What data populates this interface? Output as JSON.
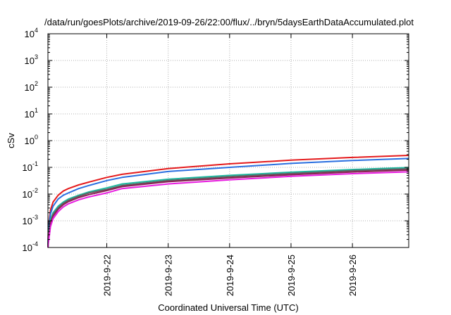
{
  "chart_data": {
    "type": "line",
    "title": "/data/run/goesPlots/archive/2019-09-26/22:00/flux/../bryn/5daysEarthDataAccumulated.plot",
    "xlabel": "Coordinated Universal Time (UTC)",
    "ylabel": "cSv",
    "y_scale": "log",
    "ylim": [
      0.0001,
      10000
    ],
    "xlim": [
      "2019-09-21 01:00",
      "2019-09-26 22:00"
    ],
    "y_ticks": [
      {
        "base": "10",
        "exp": "-4",
        "value": 0.0001
      },
      {
        "base": "10",
        "exp": "-3",
        "value": 0.001
      },
      {
        "base": "10",
        "exp": "-2",
        "value": 0.01
      },
      {
        "base": "10",
        "exp": "-1",
        "value": 0.1
      },
      {
        "base": "10",
        "exp": "0",
        "value": 1
      },
      {
        "base": "10",
        "exp": "1",
        "value": 10
      },
      {
        "base": "10",
        "exp": "2",
        "value": 100
      },
      {
        "base": "10",
        "exp": "3",
        "value": 1000
      },
      {
        "base": "10",
        "exp": "4",
        "value": 10000
      }
    ],
    "x_ticks": [
      {
        "label": "2019-9-22",
        "value": "2019-09-22 00:00"
      },
      {
        "label": "2019-9-23",
        "value": "2019-09-23 00:00"
      },
      {
        "label": "2019-9-24",
        "value": "2019-09-24 00:00"
      },
      {
        "label": "2019-9-25",
        "value": "2019-09-25 00:00"
      },
      {
        "label": "2019-9-26",
        "value": "2019-09-26 00:00"
      }
    ],
    "grid": true,
    "x": [
      "2019-09-21 01:00",
      "2019-09-21 01:12",
      "2019-09-21 02:00",
      "2019-09-21 03:00",
      "2019-09-21 05:00",
      "2019-09-21 07:00",
      "2019-09-21 09:00",
      "2019-09-21 13:00",
      "2019-09-21 17:00",
      "2019-09-22 00:00",
      "2019-09-22 06:00",
      "2019-09-23 00:00",
      "2019-09-24 00:00",
      "2019-09-25 00:00",
      "2019-09-26 00:00",
      "2019-09-26 22:00"
    ],
    "series": [
      {
        "color": "#e41a1c",
        "values": [
          0.0001,
          0.0006,
          0.0025,
          0.005,
          0.009,
          0.013,
          0.016,
          0.022,
          0.028,
          0.042,
          0.055,
          0.09,
          0.135,
          0.185,
          0.235,
          0.28
        ]
      },
      {
        "color": "#2a6fe0",
        "values": [
          0.0001,
          0.0005,
          0.0018,
          0.0035,
          0.0065,
          0.009,
          0.011,
          0.016,
          0.021,
          0.032,
          0.042,
          0.07,
          0.1,
          0.14,
          0.18,
          0.215
        ]
      },
      {
        "color": "#1fb8a0",
        "values": [
          0.0001,
          0.0003,
          0.0011,
          0.002,
          0.0035,
          0.005,
          0.0065,
          0.009,
          0.012,
          0.017,
          0.024,
          0.036,
          0.05,
          0.066,
          0.083,
          0.098
        ]
      },
      {
        "color": "#606060",
        "values": [
          0.0001,
          0.00025,
          0.0009,
          0.0017,
          0.003,
          0.0045,
          0.0058,
          0.0083,
          0.011,
          0.015,
          0.021,
          0.032,
          0.045,
          0.059,
          0.075,
          0.088
        ]
      },
      {
        "color": "#8b2252",
        "values": [
          0.0001,
          0.0002,
          0.0008,
          0.0015,
          0.0027,
          0.004,
          0.0052,
          0.0074,
          0.0095,
          0.0135,
          0.019,
          0.029,
          0.04,
          0.053,
          0.067,
          0.079
        ]
      },
      {
        "color": "#e81ce0",
        "values": [
          0.0001,
          0.00015,
          0.0006,
          0.0012,
          0.0022,
          0.0033,
          0.0043,
          0.0061,
          0.0078,
          0.011,
          0.016,
          0.024,
          0.034,
          0.046,
          0.058,
          0.068
        ]
      }
    ]
  }
}
